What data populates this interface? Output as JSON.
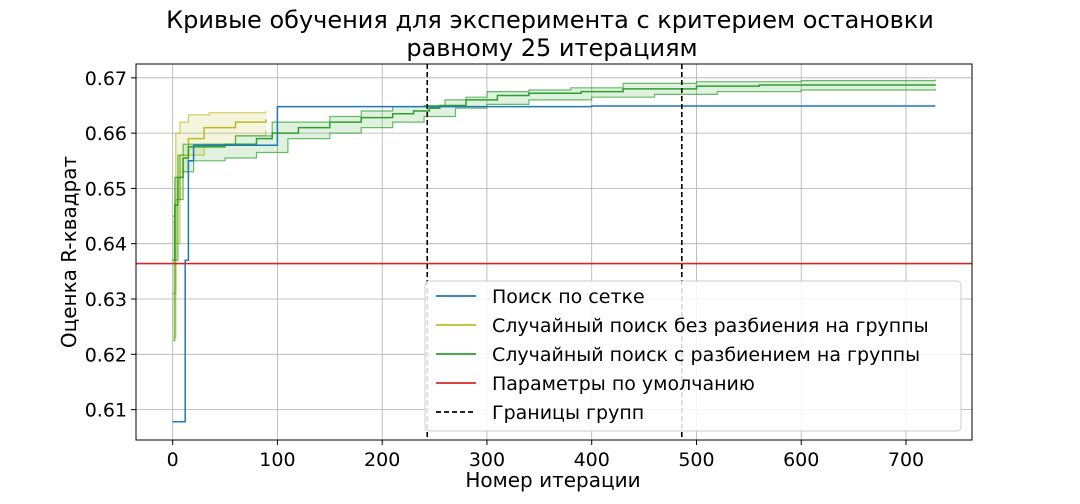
{
  "chart_data": {
    "type": "line",
    "title": [
      "Кривые обучения для эксперимента с критерием остановки",
      "равному 25 итерациям"
    ],
    "xlabel": "Номер итерации",
    "ylabel": "Оценка R-квадрат",
    "xlim": [
      -35,
      763
    ],
    "ylim": [
      0.6045,
      0.6725
    ],
    "xticks": [
      0,
      100,
      200,
      300,
      400,
      500,
      600,
      700
    ],
    "yticks": [
      0.61,
      0.62,
      0.63,
      0.64,
      0.65,
      0.66,
      0.67
    ],
    "ytick_labels": [
      "0.61",
      "0.62",
      "0.63",
      "0.64",
      "0.65",
      "0.66",
      "0.67"
    ],
    "grid": true,
    "legend_position": "lower-right",
    "series": [
      {
        "name": "Поиск по сетке",
        "color": "#1f77b4",
        "style": "step",
        "points": [
          [
            0,
            0.6078
          ],
          [
            12,
            0.6078
          ],
          [
            12,
            0.637
          ],
          [
            15,
            0.637
          ],
          [
            15,
            0.655
          ],
          [
            20,
            0.655
          ],
          [
            20,
            0.6578
          ],
          [
            100,
            0.6578
          ],
          [
            100,
            0.6648
          ],
          [
            300,
            0.6648
          ],
          [
            400,
            0.6649
          ],
          [
            728,
            0.6649
          ]
        ]
      },
      {
        "name": "Случайный поиск без разбиения на группы",
        "color": "#bcbd22",
        "style": "step-band",
        "mean": [
          [
            0,
            0.631
          ],
          [
            3,
            0.648
          ],
          [
            7,
            0.656
          ],
          [
            15,
            0.659
          ],
          [
            30,
            0.661
          ],
          [
            60,
            0.662
          ],
          [
            89,
            0.6625
          ]
        ],
        "upper": [
          [
            0,
            0.644
          ],
          [
            3,
            0.66
          ],
          [
            7,
            0.662
          ],
          [
            15,
            0.6633
          ],
          [
            35,
            0.6637
          ],
          [
            89,
            0.664
          ]
        ],
        "lower": [
          [
            0,
            0.623
          ],
          [
            3,
            0.64
          ],
          [
            7,
            0.653
          ],
          [
            15,
            0.656
          ],
          [
            30,
            0.658
          ],
          [
            60,
            0.6595
          ],
          [
            89,
            0.6605
          ]
        ]
      },
      {
        "name": "Случайный поиск с разбиением на группы",
        "color": "#2ca02c",
        "style": "step-band",
        "mean": [
          [
            0,
            0.637
          ],
          [
            2,
            0.647
          ],
          [
            5,
            0.652
          ],
          [
            10,
            0.6555
          ],
          [
            15,
            0.6575
          ],
          [
            50,
            0.658
          ],
          [
            80,
            0.659
          ],
          [
            95,
            0.66
          ],
          [
            120,
            0.661
          ],
          [
            150,
            0.662
          ],
          [
            180,
            0.6628
          ],
          [
            210,
            0.6635
          ],
          [
            230,
            0.664
          ],
          [
            245,
            0.6645
          ],
          [
            255,
            0.665
          ],
          [
            280,
            0.666
          ],
          [
            310,
            0.6668
          ],
          [
            340,
            0.6672
          ],
          [
            390,
            0.6675
          ],
          [
            430,
            0.668
          ],
          [
            500,
            0.6685
          ],
          [
            560,
            0.6687
          ],
          [
            728,
            0.6688
          ]
        ],
        "upper": [
          [
            0,
            0.645
          ],
          [
            2,
            0.652
          ],
          [
            5,
            0.656
          ],
          [
            10,
            0.658
          ],
          [
            25,
            0.658
          ],
          [
            60,
            0.6595
          ],
          [
            95,
            0.662
          ],
          [
            150,
            0.663
          ],
          [
            180,
            0.664
          ],
          [
            210,
            0.6648
          ],
          [
            240,
            0.665
          ],
          [
            260,
            0.666
          ],
          [
            280,
            0.6665
          ],
          [
            300,
            0.6675
          ],
          [
            340,
            0.6678
          ],
          [
            380,
            0.6682
          ],
          [
            430,
            0.669
          ],
          [
            500,
            0.6693
          ],
          [
            600,
            0.6695
          ],
          [
            728,
            0.6697
          ]
        ],
        "lower": [
          [
            0,
            0.6225
          ],
          [
            2,
            0.637
          ],
          [
            5,
            0.648
          ],
          [
            10,
            0.653
          ],
          [
            20,
            0.655
          ],
          [
            50,
            0.6555
          ],
          [
            80,
            0.6565
          ],
          [
            110,
            0.659
          ],
          [
            150,
            0.66
          ],
          [
            180,
            0.661
          ],
          [
            210,
            0.662
          ],
          [
            240,
            0.663
          ],
          [
            270,
            0.6645
          ],
          [
            300,
            0.6652
          ],
          [
            340,
            0.666
          ],
          [
            400,
            0.6665
          ],
          [
            460,
            0.667
          ],
          [
            520,
            0.6675
          ],
          [
            600,
            0.6678
          ],
          [
            728,
            0.668
          ]
        ]
      },
      {
        "name": "Параметры по умолчанию",
        "color": "#d62728",
        "style": "hline",
        "y": 0.6364
      },
      {
        "name": "Границы групп",
        "color": "#000000",
        "style": "vline-dashed",
        "x": [
          243,
          486
        ]
      }
    ]
  }
}
